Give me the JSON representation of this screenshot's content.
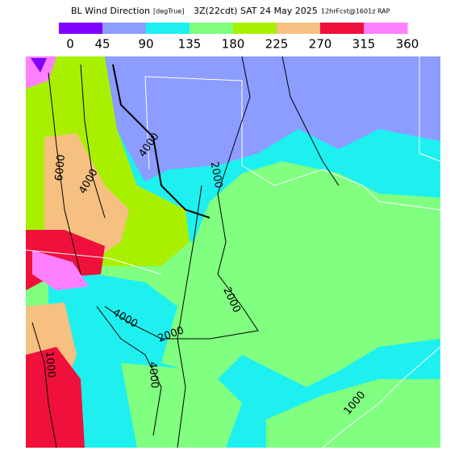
{
  "header": {
    "title": "BL Wind Direction",
    "units": "[degTrue]",
    "valid": "3Z(22cdt) SAT 24 May 2025",
    "model": "12hrFcst@1601z RAP"
  },
  "legend": {
    "labels": [
      0,
      45,
      90,
      135,
      180,
      225,
      270,
      315,
      360
    ],
    "colors": [
      "#8000ff",
      "#8c9cff",
      "#1ef0f0",
      "#80ff80",
      "#a8f000",
      "#f5c080",
      "#f0103c",
      "#ff80ff"
    ]
  },
  "contour_labels": [
    "4000",
    "6000",
    "4000",
    "2000",
    "2000",
    "4000",
    "2000",
    "1000",
    "4000",
    "1000"
  ]
}
